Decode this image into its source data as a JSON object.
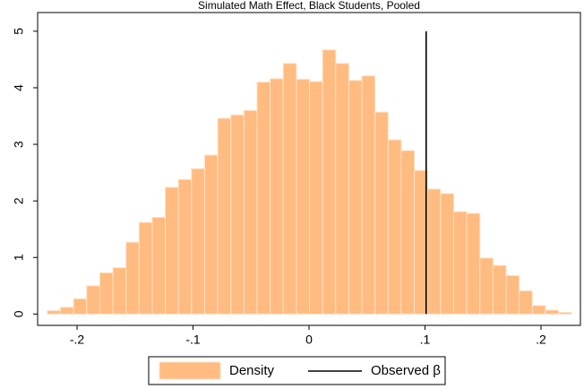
{
  "chart_data": {
    "type": "histogram",
    "title": "Simulated Math Effect, Black Students, Pooled",
    "bins": [
      -0.2256,
      -0.2143,
      -0.203,
      -0.1917,
      -0.1804,
      -0.1691,
      -0.1578,
      -0.1465,
      -0.1352,
      -0.1239,
      -0.1126,
      -0.1013,
      -0.09,
      -0.0787,
      -0.0674,
      -0.0561,
      -0.0448,
      -0.0335,
      -0.0222,
      -0.0109,
      0.0004,
      0.0117,
      0.023,
      0.0343,
      0.0456,
      0.0569,
      0.0682,
      0.0795,
      0.0908,
      0.1021,
      0.1134,
      0.1247,
      0.136,
      0.1473,
      0.1586,
      0.1699,
      0.1812,
      0.1925,
      0.2038,
      0.2151,
      0.2264
    ],
    "series": [
      {
        "name": "Density",
        "color": "#ffbb80",
        "values": [
          0.06,
          0.12,
          0.27,
          0.5,
          0.73,
          0.82,
          1.27,
          1.62,
          1.71,
          2.24,
          2.38,
          2.57,
          2.81,
          3.46,
          3.52,
          3.6,
          4.1,
          4.16,
          4.43,
          4.15,
          4.11,
          4.67,
          4.43,
          4.13,
          4.21,
          3.57,
          3.08,
          2.89,
          2.54,
          2.21,
          2.13,
          1.81,
          1.78,
          0.99,
          0.86,
          0.68,
          0.41,
          0.15,
          0.07,
          0.03
        ]
      }
    ],
    "observed": {
      "name": "Observed β",
      "x": 0.101,
      "y": [
        0,
        5
      ],
      "color": "#000000"
    },
    "xlim": [
      -0.234,
      0.234
    ],
    "ylim": [
      -0.2,
      5.33
    ],
    "xticks": [
      {
        "value": -0.2,
        "label": "-.2"
      },
      {
        "value": -0.1,
        "label": "-.1"
      },
      0,
      {
        "value": 0.1,
        "label": ".1"
      },
      {
        "value": 0.2,
        "label": ".2"
      }
    ],
    "yticks": [
      0,
      1,
      2,
      3,
      4,
      5
    ]
  }
}
